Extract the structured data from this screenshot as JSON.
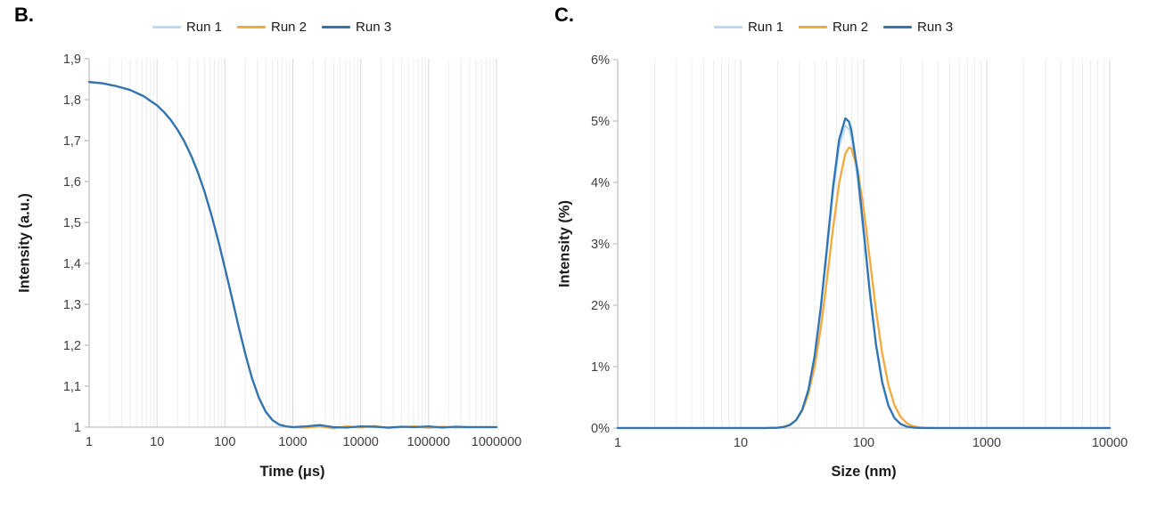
{
  "figure": {
    "panels": [
      {
        "label": "B."
      },
      {
        "label": "C."
      }
    ]
  },
  "chart_data": [
    {
      "id": "correlogram",
      "panel_label": "B.",
      "type": "line",
      "x_scale": "log",
      "x_log_range": [
        0,
        6
      ],
      "ylim": [
        1,
        1.9
      ],
      "xlabel": "Time (μs)",
      "ylabel": "Intensity (a.u.)",
      "x_tick_labels": [
        "1",
        "10",
        "100",
        "1000",
        "10000",
        "100000",
        "1000000"
      ],
      "y_tick_labels": [
        "1",
        "1,1",
        "1,2",
        "1,3",
        "1,4",
        "1,5",
        "1,6",
        "1,7",
        "1,8",
        "1,9"
      ],
      "grid": "vertical-log-minor-and-major",
      "legend_position": "top-center",
      "log_x": [
        0,
        0.2,
        0.4,
        0.6,
        0.8,
        1.0,
        1.1,
        1.2,
        1.3,
        1.4,
        1.5,
        1.6,
        1.7,
        1.8,
        1.9,
        2.0,
        2.1,
        2.2,
        2.3,
        2.4,
        2.5,
        2.6,
        2.7,
        2.8,
        2.9,
        3.0,
        3.2,
        3.4,
        3.6,
        3.8,
        4.0,
        4.2,
        4.4,
        4.6,
        4.8,
        5.0,
        5.2,
        5.4,
        5.6,
        5.8,
        6.0
      ],
      "series": [
        {
          "name": "Run 1",
          "color": "#BDD7EE",
          "y": [
            1.843,
            1.84,
            1.833,
            1.824,
            1.809,
            1.786,
            1.77,
            1.751,
            1.727,
            1.699,
            1.664,
            1.623,
            1.575,
            1.519,
            1.457,
            1.389,
            1.318,
            1.246,
            1.179,
            1.119,
            1.072,
            1.038,
            1.017,
            1.006,
            1.002,
            1.0,
            1.001,
            1.003,
            0.999,
            1.0,
            1.001,
            1.0,
            0.999,
            1.0,
            1.001,
            1.0,
            1.0,
            1.0,
            1.0,
            1.0,
            1.0
          ]
        },
        {
          "name": "Run 2",
          "color": "#F5A93C",
          "y": [
            1.843,
            1.84,
            1.833,
            1.824,
            1.809,
            1.786,
            1.77,
            1.751,
            1.727,
            1.699,
            1.664,
            1.623,
            1.575,
            1.519,
            1.457,
            1.389,
            1.318,
            1.246,
            1.179,
            1.119,
            1.072,
            1.038,
            1.017,
            1.006,
            1.002,
            1.0,
            0.999,
            1.002,
            0.997,
            1.002,
            0.999,
            1.003,
            0.998,
            1.0,
            1.002,
            0.998,
            1.001,
            0.999,
            1.0,
            1.0,
            1.0
          ]
        },
        {
          "name": "Run 3",
          "color": "#2E75B6",
          "y": [
            1.843,
            1.84,
            1.833,
            1.824,
            1.809,
            1.786,
            1.77,
            1.751,
            1.727,
            1.699,
            1.664,
            1.623,
            1.575,
            1.519,
            1.457,
            1.389,
            1.318,
            1.246,
            1.179,
            1.119,
            1.072,
            1.038,
            1.017,
            1.006,
            1.002,
            1.0,
            1.002,
            1.005,
            1.0,
            0.999,
            1.002,
            1.001,
            0.999,
            1.001,
            1.0,
            1.002,
            0.999,
            1.001,
            1.0,
            1.0,
            1.0
          ]
        }
      ]
    },
    {
      "id": "size-distribution",
      "panel_label": "C.",
      "type": "line",
      "x_scale": "log",
      "x_log_range": [
        0,
        4
      ],
      "ylim": [
        0,
        6
      ],
      "xlabel": "Size (nm)",
      "ylabel": "Intensity (%)",
      "x_tick_labels": [
        "1",
        "10",
        "100",
        "1000",
        "10000"
      ],
      "y_tick_labels": [
        "0%",
        "1%",
        "2%",
        "3%",
        "4%",
        "5%",
        "6%"
      ],
      "grid": "vertical-log-minor-and-major",
      "legend_position": "top-center",
      "peak_summary": {
        "run1_peak_pct": 4.92,
        "run2_peak_pct": 4.57,
        "run3_peak_pct": 5.05,
        "peak_size_nm": 72
      },
      "log_x": [
        0,
        0.5,
        1.0,
        1.2,
        1.3,
        1.35,
        1.4,
        1.45,
        1.5,
        1.55,
        1.6,
        1.65,
        1.7,
        1.75,
        1.8,
        1.85,
        1.88,
        1.9,
        1.95,
        2.0,
        2.05,
        2.1,
        2.15,
        2.2,
        2.25,
        2.3,
        2.35,
        2.4,
        2.45,
        2.5,
        2.6,
        3.0,
        3.5,
        4.0
      ],
      "series": [
        {
          "name": "Run 1",
          "color": "#BDD7EE",
          "y": [
            0,
            0,
            0,
            0,
            0.005,
            0.016,
            0.048,
            0.124,
            0.291,
            0.607,
            1.137,
            1.902,
            2.85,
            3.822,
            4.585,
            4.923,
            4.871,
            4.731,
            4.067,
            3.129,
            2.153,
            1.326,
            0.731,
            0.361,
            0.159,
            0.063,
            0.022,
            0.007,
            0.002,
            0,
            0,
            0,
            0,
            0
          ]
        },
        {
          "name": "Run 2",
          "color": "#F5A93C",
          "y": [
            0,
            0,
            0,
            0,
            0.007,
            0.021,
            0.055,
            0.13,
            0.281,
            0.553,
            0.992,
            1.615,
            2.4,
            3.243,
            3.989,
            4.466,
            4.568,
            4.551,
            4.221,
            3.563,
            2.738,
            1.914,
            1.218,
            0.706,
            0.373,
            0.179,
            0.078,
            0.031,
            0.011,
            0.004,
            0,
            0,
            0,
            0
          ]
        },
        {
          "name": "Run 3",
          "color": "#2E75B6",
          "y": [
            0,
            0,
            0,
            0,
            0.005,
            0.017,
            0.049,
            0.127,
            0.298,
            0.622,
            1.165,
            1.949,
            2.92,
            3.916,
            4.698,
            5.044,
            4.991,
            4.847,
            4.167,
            3.206,
            2.206,
            1.359,
            0.749,
            0.37,
            0.163,
            0.065,
            0.023,
            0.007,
            0.002,
            0,
            0,
            0,
            0,
            0
          ]
        }
      ]
    }
  ]
}
